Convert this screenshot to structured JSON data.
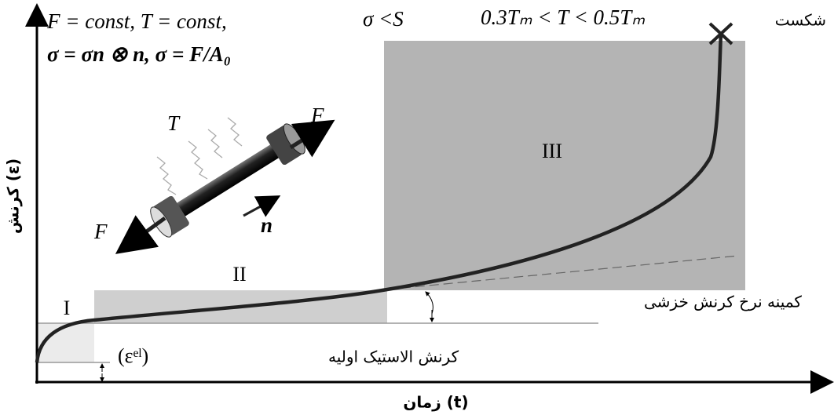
{
  "header": {
    "conditions": "F = const,   T = const,",
    "stress_limit": "σ <S",
    "temperature_range": "0.3Tₘ < T < 0.5Tₘ",
    "stress_definition": "σ = σn ⊗ n,  σ = F/A₀"
  },
  "specimen": {
    "temperature": "T",
    "force_right": "F",
    "force_left": "F",
    "direction": "n"
  },
  "stages": {
    "primary": "I",
    "secondary": "II",
    "tertiary": "III"
  },
  "annotations": {
    "fracture": "شکست",
    "min_creep_rate": "کمینه نرخ کرنش خزشی",
    "elastic_strain": "کرنش الاستیک اولیه",
    "elastic_symbol": "(εᵉˡ)"
  },
  "axes": {
    "x_label": "زمان (t)",
    "y_label": "کرنش (ε)"
  }
}
